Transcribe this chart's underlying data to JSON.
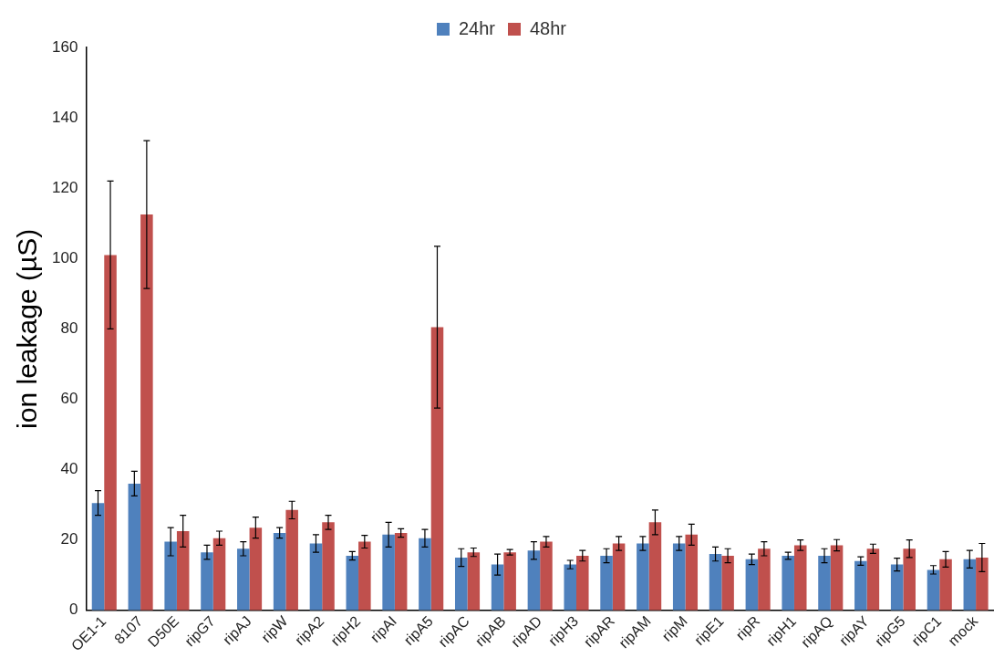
{
  "chart_data": {
    "type": "bar",
    "ylabel": "ion leakage (µS)",
    "categories": [
      "OE1-1",
      "8107",
      "D50E",
      "ripG7",
      "ripAJ",
      "ripW",
      "ripA2",
      "ripH2",
      "ripAI",
      "ripA5",
      "ripAC",
      "ripAB",
      "ripAD",
      "ripH3",
      "ripAR",
      "ripAM",
      "ripM",
      "ripE1",
      "ripR",
      "ripH1",
      "ripAQ",
      "ripAY",
      "ripG5",
      "ripC1",
      "mock"
    ],
    "series": [
      {
        "name": "24hr",
        "color": "#4f81bd",
        "values": [
          30.5,
          36,
          19.5,
          16.5,
          17.5,
          22,
          19,
          15.5,
          21.5,
          20.5,
          15,
          13,
          17,
          13,
          15.5,
          19,
          19,
          16,
          14.5,
          15.5,
          15.5,
          14,
          13,
          11.5,
          14.5
        ],
        "errors": [
          3.5,
          3.5,
          4,
          2,
          2,
          1.5,
          2.5,
          1.2,
          3.5,
          2.5,
          2.5,
          3,
          2.5,
          1.2,
          2,
          2,
          2,
          2,
          1.5,
          1,
          2,
          1.2,
          1.8,
          1.2,
          2.5
        ]
      },
      {
        "name": "48hr",
        "color": "#c0504d",
        "values": [
          101,
          112.5,
          22.5,
          20.5,
          23.5,
          28.5,
          25,
          19.5,
          22,
          80.5,
          16.5,
          16.5,
          19.5,
          15.5,
          19,
          25,
          21.5,
          15.5,
          17.5,
          18.5,
          18.5,
          17.5,
          17.5,
          14.5,
          15
        ],
        "errors": [
          21,
          21,
          4.5,
          2,
          3,
          2.5,
          2,
          1.8,
          1.2,
          23,
          1.2,
          0.8,
          1.5,
          1.5,
          2,
          3.5,
          3,
          2,
          2,
          1.5,
          1.6,
          1.3,
          2.5,
          2.2,
          4
        ]
      }
    ],
    "ylim": [
      0,
      160
    ],
    "yticks": [
      0,
      20,
      40,
      60,
      80,
      100,
      120,
      140,
      160
    ],
    "grid": false,
    "legend": "top"
  }
}
